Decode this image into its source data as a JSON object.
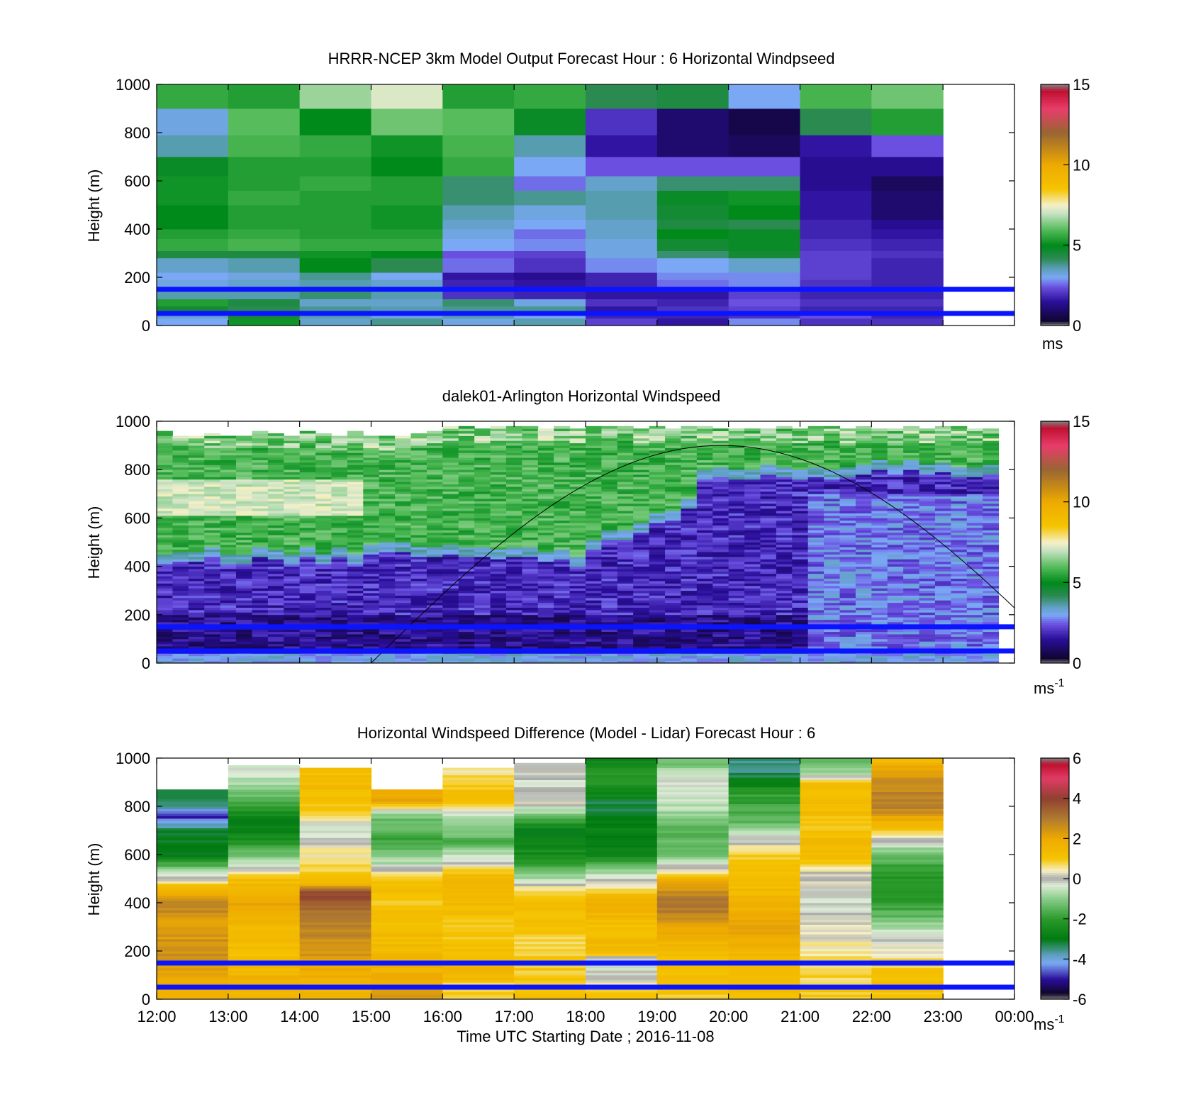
{
  "chart_data": [
    {
      "type": "heatmap",
      "title": "HRRR-NCEP 3km Model Output   Forecast Hour : 6 Horizontal Windpseed",
      "xlabel": "",
      "ylabel": "Height (m)",
      "xlim": [
        "12:00",
        "00:00"
      ],
      "ylim": [
        0,
        1000
      ],
      "yticks": [
        "0",
        "200",
        "400",
        "600",
        "800",
        "1000"
      ],
      "colorbar": {
        "ticks": [
          "0",
          "5",
          "10",
          "15"
        ],
        "label": "ms",
        "min": 0,
        "max": 15,
        "palette": "speed"
      },
      "hours": [
        12,
        13,
        14,
        15,
        16,
        17,
        18,
        19,
        20,
        21,
        22
      ],
      "heights_m": [
        0,
        30,
        50,
        80,
        110,
        150,
        190,
        220,
        280,
        310,
        360,
        400,
        440,
        500,
        560,
        620,
        700,
        790,
        900,
        1000
      ],
      "values": [
        [
          3.0,
          5.2,
          3.4,
          3.8,
          3.2,
          3.6,
          2.2,
          1.6,
          2.8,
          2.0,
          2.0
        ],
        [
          3.4,
          4.6,
          3.6,
          3.2,
          3.6,
          3.0,
          1.8,
          1.8,
          2.0,
          2.4,
          1.8
        ],
        [
          4.6,
          4.2,
          3.8,
          3.6,
          3.8,
          3.8,
          1.6,
          2.0,
          2.2,
          1.8,
          1.8
        ],
        [
          5.4,
          4.4,
          3.4,
          3.4,
          4.0,
          3.2,
          2.0,
          1.8,
          2.4,
          2.0,
          2.0
        ],
        [
          3.6,
          3.6,
          4.0,
          3.6,
          2.0,
          1.8,
          1.6,
          1.6,
          2.2,
          1.8,
          1.8
        ],
        [
          3.2,
          3.4,
          3.6,
          3.4,
          1.8,
          1.6,
          1.8,
          2.6,
          2.8,
          2.0,
          1.8
        ],
        [
          3.0,
          3.2,
          3.8,
          3.0,
          1.6,
          1.4,
          1.8,
          2.8,
          2.8,
          2.2,
          1.8
        ],
        [
          3.4,
          3.6,
          5.0,
          4.2,
          2.6,
          2.0,
          2.8,
          3.0,
          3.4,
          2.2,
          1.8
        ],
        [
          4.4,
          4.4,
          5.2,
          5.0,
          2.4,
          2.2,
          3.2,
          4.0,
          4.6,
          2.2,
          2.0
        ],
        [
          5.6,
          5.8,
          5.6,
          5.6,
          3.0,
          2.8,
          3.2,
          4.6,
          4.8,
          2.0,
          1.8
        ],
        [
          5.4,
          5.6,
          5.4,
          5.4,
          3.2,
          2.6,
          3.4,
          5.0,
          4.8,
          1.8,
          1.6
        ],
        [
          5.0,
          5.4,
          5.4,
          5.2,
          3.4,
          3.0,
          3.4,
          4.4,
          4.2,
          1.8,
          1.4
        ],
        [
          5.0,
          5.4,
          5.4,
          5.2,
          3.6,
          3.2,
          3.6,
          4.6,
          5.0,
          1.6,
          1.0
        ],
        [
          5.2,
          5.6,
          5.4,
          5.4,
          4.0,
          3.8,
          3.6,
          4.8,
          5.2,
          1.6,
          1.0
        ],
        [
          5.2,
          5.4,
          5.6,
          5.4,
          4.0,
          2.6,
          3.4,
          4.0,
          4.0,
          1.4,
          0.8
        ],
        [
          4.8,
          5.4,
          5.4,
          5.0,
          5.6,
          3.0,
          2.4,
          2.4,
          2.4,
          1.4,
          1.4
        ],
        [
          3.6,
          5.8,
          5.6,
          5.2,
          5.8,
          3.6,
          1.6,
          1.0,
          0.8,
          1.6,
          2.4
        ],
        [
          3.2,
          6.0,
          5.0,
          6.2,
          6.0,
          4.8,
          2.0,
          1.0,
          0.6,
          4.2,
          5.4
        ],
        [
          5.6,
          5.4,
          6.6,
          7.2,
          5.4,
          5.6,
          4.2,
          4.4,
          3.0,
          5.8,
          6.2
        ]
      ],
      "bands_m": [
        50,
        150
      ]
    },
    {
      "type": "heatmap",
      "title": "dalek01-Arlington  Horizontal Windspeed",
      "xlabel": "",
      "ylabel": "Height (m)",
      "xlim": [
        "12:00",
        "00:00"
      ],
      "ylim": [
        0,
        1000
      ],
      "yticks": [
        "0",
        "200",
        "400",
        "600",
        "800",
        "1000"
      ],
      "colorbar": {
        "ticks": [
          "0",
          "5",
          "10",
          "15"
        ],
        "label": "ms",
        "label_superscript": "-1",
        "min": 0,
        "max": 15,
        "palette": "speed"
      },
      "bands_m": [
        50,
        150
      ]
    },
    {
      "type": "heatmap",
      "title": "Horizontal Windspeed Difference (Model - Lidar) Forecast Hour : 6",
      "xlabel": "Time UTC  Starting Date ; 2016-11-08",
      "ylabel": "Height (m)",
      "xticks": [
        "12:00",
        "13:00",
        "14:00",
        "15:00",
        "16:00",
        "17:00",
        "18:00",
        "19:00",
        "20:00",
        "21:00",
        "22:00",
        "23:00",
        "00:00"
      ],
      "ylim": [
        0,
        1000
      ],
      "yticks": [
        "0",
        "200",
        "400",
        "600",
        "800",
        "1000"
      ],
      "colorbar": {
        "ticks": [
          "-6",
          "-4",
          "-2",
          "0",
          "2",
          "4",
          "6"
        ],
        "label": "ms",
        "label_superscript": "-1",
        "min": -6,
        "max": 6,
        "palette": "diff"
      },
      "hours": [
        12,
        13,
        14,
        15,
        16,
        17,
        18,
        19,
        20,
        21,
        22
      ],
      "column_top_m": [
        870,
        970,
        960,
        870,
        960,
        980,
        1000,
        1000,
        1000,
        1000,
        1000
      ],
      "profiles": [
        [
          [
            0,
            1.5
          ],
          [
            100,
            2.0
          ],
          [
            200,
            2.6
          ],
          [
            300,
            2.2
          ],
          [
            400,
            2.8
          ],
          [
            460,
            1.6
          ],
          [
            500,
            0.0
          ],
          [
            540,
            -1.0
          ],
          [
            600,
            -3.0
          ],
          [
            700,
            -3.2
          ],
          [
            760,
            -5.0
          ],
          [
            800,
            -3.6
          ],
          [
            870,
            -3.0
          ]
        ],
        [
          [
            0,
            1.5
          ],
          [
            100,
            1.6
          ],
          [
            200,
            1.2
          ],
          [
            300,
            1.4
          ],
          [
            400,
            2.0
          ],
          [
            500,
            1.2
          ],
          [
            560,
            -0.5
          ],
          [
            650,
            -2.2
          ],
          [
            740,
            -3.0
          ],
          [
            820,
            -1.6
          ],
          [
            900,
            -0.6
          ],
          [
            970,
            -0.4
          ]
        ],
        [
          [
            0,
            1.5
          ],
          [
            100,
            1.8
          ],
          [
            200,
            2.4
          ],
          [
            300,
            2.8
          ],
          [
            380,
            3.2
          ],
          [
            440,
            4.0
          ],
          [
            480,
            1.6
          ],
          [
            560,
            0.6
          ],
          [
            640,
            0.3
          ],
          [
            700,
            -0.5
          ],
          [
            780,
            1.0
          ],
          [
            900,
            1.4
          ],
          [
            960,
            1.2
          ]
        ],
        [
          [
            0,
            2.4
          ],
          [
            100,
            1.8
          ],
          [
            200,
            1.4
          ],
          [
            300,
            1.2
          ],
          [
            400,
            1.0
          ],
          [
            500,
            1.2
          ],
          [
            560,
            -0.6
          ],
          [
            650,
            -1.8
          ],
          [
            760,
            -1.2
          ],
          [
            820,
            2.0
          ],
          [
            870,
            2.2
          ]
        ],
        [
          [
            0,
            1.0
          ],
          [
            60,
            0.8
          ],
          [
            100,
            1.6
          ],
          [
            200,
            1.2
          ],
          [
            300,
            1.0
          ],
          [
            400,
            1.4
          ],
          [
            500,
            1.6
          ],
          [
            560,
            0.2
          ],
          [
            650,
            -1.6
          ],
          [
            760,
            -0.6
          ],
          [
            820,
            1.2
          ],
          [
            900,
            1.0
          ],
          [
            960,
            0.4
          ]
        ],
        [
          [
            0,
            1.2
          ],
          [
            100,
            1.0
          ],
          [
            200,
            0.8
          ],
          [
            300,
            1.0
          ],
          [
            400,
            1.4
          ],
          [
            450,
            0.8
          ],
          [
            500,
            -0.8
          ],
          [
            600,
            -2.4
          ],
          [
            700,
            -3.0
          ],
          [
            760,
            -1.2
          ],
          [
            820,
            0.2
          ],
          [
            900,
            -0.2
          ],
          [
            980,
            0.0
          ]
        ],
        [
          [
            0,
            1.2
          ],
          [
            160,
            -0.6
          ],
          [
            200,
            1.6
          ],
          [
            300,
            1.2
          ],
          [
            400,
            1.8
          ],
          [
            500,
            0.0
          ],
          [
            600,
            -2.6
          ],
          [
            700,
            -2.8
          ],
          [
            800,
            -3.4
          ],
          [
            900,
            -2.0
          ],
          [
            1000,
            -2.6
          ]
        ],
        [
          [
            0,
            1.0
          ],
          [
            200,
            1.2
          ],
          [
            300,
            2.2
          ],
          [
            400,
            3.2
          ],
          [
            460,
            2.4
          ],
          [
            500,
            1.6
          ],
          [
            540,
            0.2
          ],
          [
            600,
            -1.2
          ],
          [
            700,
            -1.6
          ],
          [
            800,
            -0.6
          ],
          [
            900,
            -0.2
          ],
          [
            1000,
            -1.4
          ]
        ],
        [
          [
            0,
            1.2
          ],
          [
            200,
            1.6
          ],
          [
            300,
            2.2
          ],
          [
            400,
            1.6
          ],
          [
            500,
            1.2
          ],
          [
            600,
            1.0
          ],
          [
            680,
            -0.4
          ],
          [
            750,
            -1.6
          ],
          [
            850,
            -2.0
          ],
          [
            950,
            -3.6
          ],
          [
            1000,
            -3.4
          ]
        ],
        [
          [
            0,
            1.0
          ],
          [
            200,
            0.6
          ],
          [
            300,
            0.2
          ],
          [
            400,
            -0.3
          ],
          [
            480,
            0.2
          ],
          [
            520,
            0.0
          ],
          [
            560,
            1.0
          ],
          [
            640,
            1.4
          ],
          [
            720,
            1.0
          ],
          [
            800,
            1.4
          ],
          [
            900,
            1.2
          ],
          [
            940,
            -0.8
          ],
          [
            1000,
            -1.4
          ]
        ],
        [
          [
            0,
            1.0
          ],
          [
            100,
            1.2
          ],
          [
            200,
            0.4
          ],
          [
            300,
            -0.8
          ],
          [
            400,
            -2.0
          ],
          [
            500,
            -2.2
          ],
          [
            600,
            -1.4
          ],
          [
            650,
            -0.2
          ],
          [
            700,
            1.0
          ],
          [
            800,
            3.0
          ],
          [
            900,
            2.6
          ],
          [
            1000,
            1.4
          ]
        ]
      ],
      "bands_m": [
        50,
        150
      ]
    }
  ]
}
